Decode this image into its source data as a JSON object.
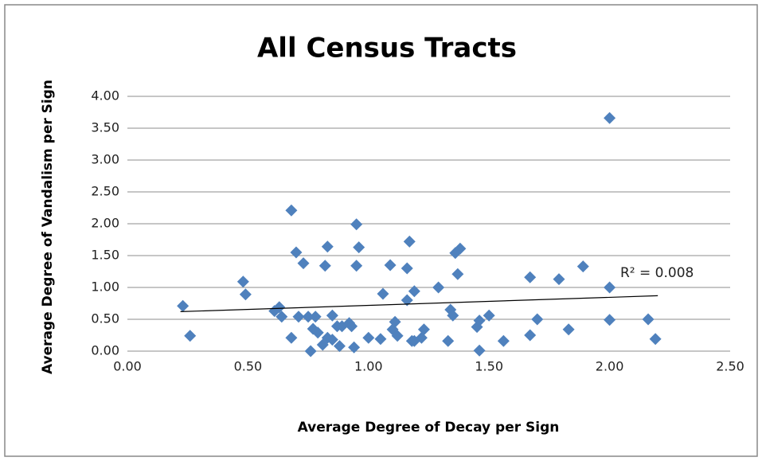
{
  "chart_data": {
    "type": "scatter",
    "title": "All Census Tracts",
    "x_label": "Average Degree of Decay per Sign",
    "y_label": "Average Degree of Vandalism per Sign",
    "color": "#4f81bd",
    "grid": true,
    "xlim": [
      0,
      2.5
    ],
    "ylim": [
      0,
      4
    ],
    "xticks": [
      {
        "value": 0,
        "label": "0.00"
      },
      {
        "value": 0.5,
        "label": "0.50"
      },
      {
        "value": 1,
        "label": "1.00"
      },
      {
        "value": 1.5,
        "label": "1.50"
      },
      {
        "value": 2,
        "label": "2.00"
      },
      {
        "value": 2.5,
        "label": "2.50"
      }
    ],
    "yticks": [
      {
        "value": 0,
        "label": "0.00"
      },
      {
        "value": 0.5,
        "label": "0.50"
      },
      {
        "value": 1,
        "label": "1.00"
      },
      {
        "value": 1.5,
        "label": "1.50"
      },
      {
        "value": 2,
        "label": "2.00"
      },
      {
        "value": 2.5,
        "label": "2.50"
      },
      {
        "value": 3,
        "label": "3.00"
      },
      {
        "value": 3.5,
        "label": "3.50"
      },
      {
        "value": 4,
        "label": "4.00"
      }
    ],
    "x": [
      0.23,
      0.26,
      0.48,
      0.49,
      0.61,
      0.63,
      0.64,
      0.68,
      0.68,
      0.7,
      0.71,
      0.73,
      0.75,
      0.76,
      0.77,
      0.78,
      0.79,
      0.81,
      0.82,
      0.83,
      0.83,
      0.85,
      0.85,
      0.87,
      0.88,
      0.89,
      0.92,
      0.93,
      0.94,
      0.95,
      0.95,
      0.96,
      1.0,
      1.05,
      1.06,
      1.09,
      1.1,
      1.11,
      1.12,
      1.16,
      1.16,
      1.17,
      1.18,
      1.19,
      1.19,
      1.22,
      1.23,
      1.29,
      1.33,
      1.34,
      1.35,
      1.36,
      1.37,
      1.38,
      1.45,
      1.46,
      1.46,
      1.5,
      1.56,
      1.67,
      1.67,
      1.7,
      1.79,
      1.83,
      1.89,
      2.0,
      2.0,
      2.0,
      2.16,
      2.19
    ],
    "y": [
      0.71,
      0.24,
      1.09,
      0.89,
      0.63,
      0.69,
      0.54,
      2.21,
      0.21,
      1.55,
      0.54,
      1.38,
      0.54,
      0.0,
      0.35,
      0.54,
      0.29,
      0.1,
      1.34,
      0.21,
      1.64,
      0.56,
      0.18,
      0.39,
      0.08,
      0.39,
      0.44,
      0.39,
      0.06,
      1.99,
      1.34,
      1.63,
      0.21,
      0.19,
      0.9,
      1.35,
      0.34,
      0.46,
      0.24,
      1.3,
      0.8,
      1.72,
      0.16,
      0.94,
      0.16,
      0.21,
      0.34,
      1.0,
      0.16,
      0.65,
      0.56,
      1.54,
      1.21,
      1.61,
      0.38,
      0.48,
      0.01,
      0.56,
      0.16,
      1.16,
      0.25,
      0.5,
      1.13,
      0.34,
      1.33,
      1.0,
      0.49,
      3.66,
      0.5,
      0.19
    ],
    "trendline": {
      "x": [
        0.22,
        2.2
      ],
      "y": [
        0.62,
        0.87
      ],
      "label": "R² = 0.008"
    }
  }
}
